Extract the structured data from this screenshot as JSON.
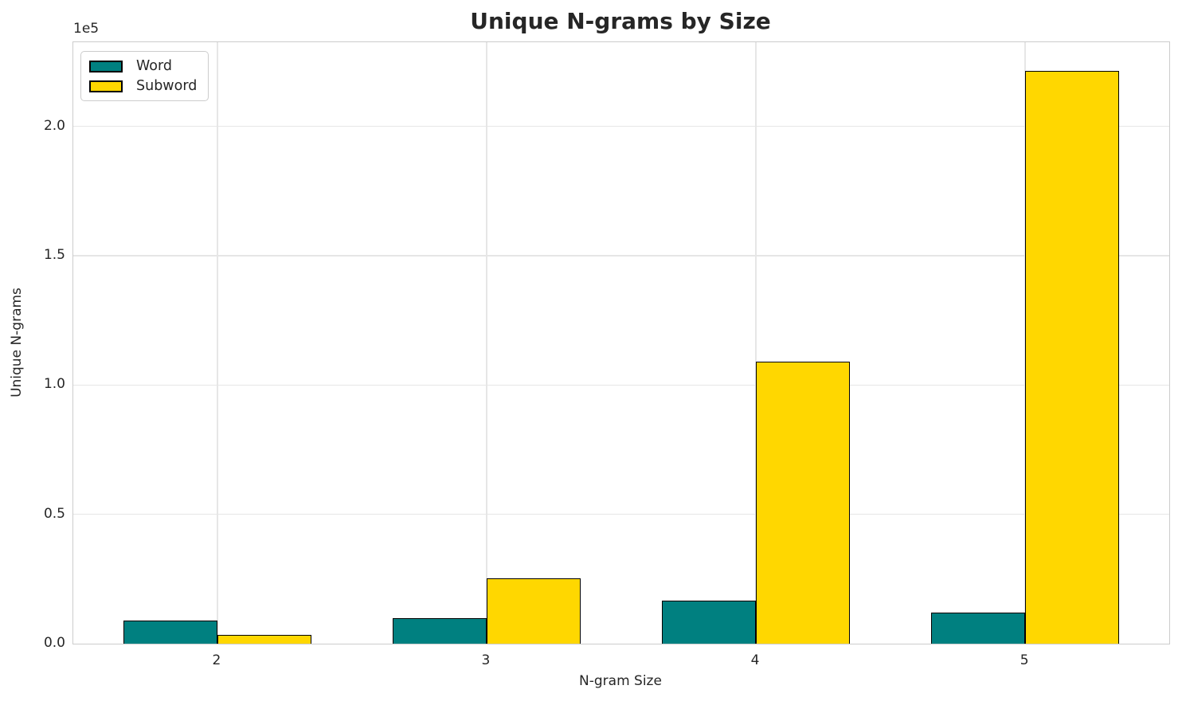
{
  "chart_data": {
    "type": "bar",
    "title": "Unique N-grams by Size",
    "xlabel": "N-gram Size",
    "ylabel": "Unique N-grams",
    "offset_text": "1e5",
    "categories": [
      2,
      3,
      4,
      5
    ],
    "series": [
      {
        "name": "Word",
        "color": "#008080",
        "values": [
          8800,
          9900,
          16500,
          11900
        ]
      },
      {
        "name": "Subword",
        "color": "#FFD700",
        "values": [
          3500,
          25200,
          108900,
          221300
        ]
      }
    ],
    "bar_width": 0.35,
    "bar_edge_color": "#000000",
    "xlim": [
      1.465,
      5.535
    ],
    "ylim": [
      0,
      232500
    ],
    "yticks": [
      0,
      50000,
      100000,
      150000,
      200000
    ],
    "ytick_labels": [
      "0.0",
      "0.5",
      "1.0",
      "1.5",
      "2.0"
    ],
    "grid": true,
    "legend_position": "upper-left",
    "colors": {
      "grid": "#e6e6e6",
      "spine": "#cccccc",
      "text": "#262626"
    }
  }
}
